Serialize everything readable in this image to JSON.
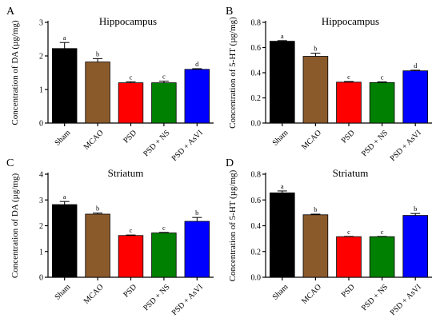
{
  "chart_data": [
    {
      "type": "bar",
      "panel": "A",
      "title": "Hippocampus",
      "ylabel": "Concentration of DA (µg/mg)",
      "ylim": [
        0,
        3
      ],
      "yticks": [
        0,
        1,
        2,
        3
      ],
      "categories": [
        "Sham",
        "MCAO",
        "PSD",
        "PSD + NS",
        "PSD + AsVI"
      ],
      "values": [
        2.22,
        1.82,
        1.2,
        1.2,
        1.6
      ],
      "errors": [
        0.18,
        0.1,
        0.03,
        0.05,
        0.02
      ],
      "significance": [
        "a",
        "b",
        "c",
        "c",
        "d"
      ],
      "colors": [
        "#000000",
        "#8b5a2b",
        "#ff0000",
        "#008000",
        "#0000ff"
      ]
    },
    {
      "type": "bar",
      "panel": "B",
      "title": "Hippocampus",
      "ylabel": "Concentration of 5-HT (µg/mg)",
      "ylim": [
        0,
        0.8
      ],
      "yticks": [
        0.0,
        0.2,
        0.4,
        0.6,
        0.8
      ],
      "categories": [
        "Sham",
        "MCAO",
        "PSD",
        "PSD + NS",
        "PSD + AsVI"
      ],
      "values": [
        0.65,
        0.53,
        0.325,
        0.322,
        0.415
      ],
      "errors": [
        0.005,
        0.025,
        0.005,
        0.005,
        0.005
      ],
      "significance": [
        "a",
        "b",
        "c",
        "c",
        "d"
      ],
      "colors": [
        "#000000",
        "#8b5a2b",
        "#ff0000",
        "#008000",
        "#0000ff"
      ]
    },
    {
      "type": "bar",
      "panel": "C",
      "title": "Striatum",
      "ylabel": "Concentration of DA (µg/mg)",
      "ylim": [
        0,
        4
      ],
      "yticks": [
        0,
        1,
        2,
        3,
        4
      ],
      "categories": [
        "Sham",
        "MCAO",
        "PSD",
        "PSD + NS",
        "PSD + AsVI"
      ],
      "values": [
        2.82,
        2.45,
        1.62,
        1.72,
        2.17
      ],
      "errors": [
        0.12,
        0.04,
        0.02,
        0.02,
        0.15
      ],
      "significance": [
        "a",
        "b",
        "c",
        "c",
        "b"
      ],
      "colors": [
        "#000000",
        "#8b5a2b",
        "#ff0000",
        "#008000",
        "#0000ff"
      ]
    },
    {
      "type": "bar",
      "panel": "D",
      "title": "Striatum",
      "ylabel": "Concentration of 5-HT (µg/mg)",
      "ylim": [
        0,
        0.8
      ],
      "yticks": [
        0.0,
        0.2,
        0.4,
        0.6,
        0.8
      ],
      "categories": [
        "Sham",
        "MCAO",
        "PSD",
        "PSD + NS",
        "PSD + AsVI"
      ],
      "values": [
        0.655,
        0.485,
        0.315,
        0.315,
        0.48
      ],
      "errors": [
        0.015,
        0.005,
        0.002,
        0.002,
        0.015
      ],
      "significance": [
        "a",
        "b",
        "c",
        "c",
        "b"
      ],
      "colors": [
        "#000000",
        "#8b5a2b",
        "#ff0000",
        "#008000",
        "#0000ff"
      ]
    }
  ]
}
